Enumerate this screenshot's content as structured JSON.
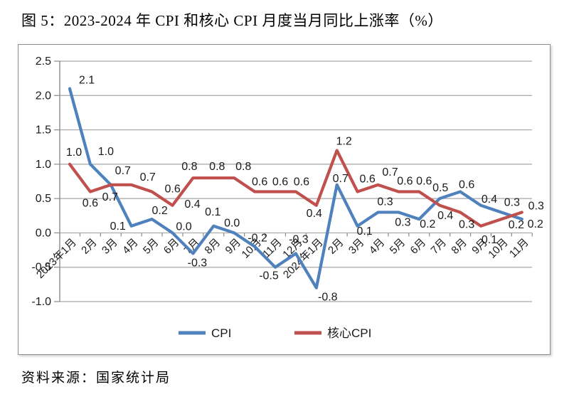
{
  "source_note": "资料来源：国家统计局",
  "colors": {
    "cpi": "#4F81BD",
    "core_cpi": "#C0504D",
    "gridline": "#A6A6A6",
    "axis": "#8A8A8A",
    "text": "#1A1A1A",
    "frame_border": "#8E8E8E",
    "background": "#FFFFFF"
  },
  "chart_data": {
    "type": "line",
    "title": "图 5：2023-2024 年 CPI 和核心 CPI 月度当月同比上涨率（%）",
    "xlabel": "",
    "ylabel": "",
    "grid": true,
    "legend_position": "bottom",
    "x_tick_rotation": -45,
    "value_label_decimals": 1,
    "ylim": [
      -1.0,
      2.5
    ],
    "y_ticks": [
      2.5,
      2.0,
      1.5,
      1.0,
      0.5,
      0.0,
      -0.5,
      -1.0
    ],
    "categories": [
      "2023年1月",
      "2月",
      "3月",
      "4月",
      "5月",
      "6月",
      "7月",
      "8月",
      "9月",
      "10月",
      "11月",
      "12月",
      "2024年1月",
      "2月",
      "3月",
      "4月",
      "5月",
      "6月",
      "7月",
      "8月",
      "9月",
      "10月",
      "11月"
    ],
    "series": [
      {
        "name": "CPI",
        "id": "cpi",
        "color_key": "cpi",
        "values": [
          2.1,
          1.0,
          0.7,
          0.1,
          0.2,
          0.0,
          -0.3,
          0.1,
          0.0,
          -0.2,
          -0.5,
          -0.3,
          -0.8,
          0.7,
          0.1,
          0.3,
          0.3,
          0.2,
          0.5,
          0.6,
          0.4,
          0.3,
          0.2
        ],
        "label_offsets": [
          [
            24,
            -12
          ],
          [
            22,
            -18
          ],
          [
            -1,
            17
          ],
          [
            -19,
            0
          ],
          [
            11,
            -12
          ],
          [
            16,
            -9
          ],
          [
            6,
            13
          ],
          [
            -1,
            -20
          ],
          [
            -3,
            -14
          ],
          [
            4,
            -12
          ],
          [
            -9,
            12
          ],
          [
            4,
            -20
          ],
          [
            16,
            13
          ],
          [
            5,
            -9
          ],
          [
            10,
            7
          ],
          [
            10,
            -15
          ],
          [
            6,
            14
          ],
          [
            12,
            7
          ],
          [
            1,
            -15
          ],
          [
            9,
            -10
          ],
          [
            12,
            -9
          ],
          [
            15,
            -14
          ],
          [
            19,
            7
          ]
        ]
      },
      {
        "name": "核心CPI",
        "id": "core-cpi",
        "color_key": "core_cpi",
        "values": [
          1.0,
          0.6,
          0.7,
          0.7,
          0.6,
          0.4,
          0.8,
          0.8,
          0.8,
          0.6,
          0.6,
          0.6,
          0.4,
          1.2,
          0.6,
          0.7,
          0.6,
          0.6,
          0.4,
          0.3,
          0.1,
          0.2,
          0.3
        ],
        "label_offsets": [
          [
            6,
            -17
          ],
          [
            0,
            16
          ],
          [
            17,
            -20
          ],
          [
            23,
            -11
          ],
          [
            29,
            -4
          ],
          [
            28,
            -2
          ],
          [
            -5,
            -16
          ],
          [
            5,
            -16
          ],
          [
            13,
            -16
          ],
          [
            7,
            -14
          ],
          [
            7,
            -14
          ],
          [
            8,
            -14
          ],
          [
            -3,
            11
          ],
          [
            10,
            -13
          ],
          [
            14,
            -18
          ],
          [
            17,
            -18
          ],
          [
            9,
            -15
          ],
          [
            7,
            -15
          ],
          [
            8,
            14
          ],
          [
            9,
            17
          ],
          [
            12,
            19
          ],
          [
            21,
            8
          ],
          [
            20,
            -9
          ]
        ]
      }
    ]
  }
}
